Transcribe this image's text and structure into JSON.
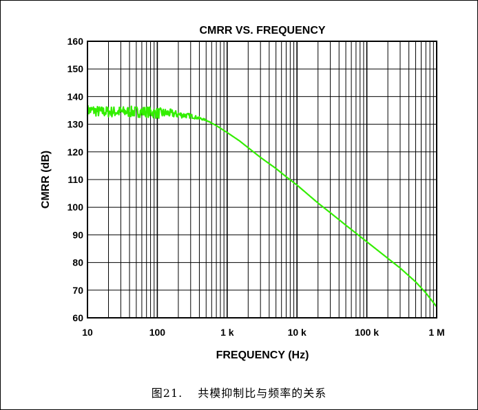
{
  "chart_data": {
    "type": "line",
    "title": "CMRR VS. FREQUENCY",
    "xlabel": "FREQUENCY (Hz)",
    "ylabel": "CMRR (dB)",
    "x_scale": "log",
    "xlim": [
      10,
      1000000
    ],
    "ylim": [
      60,
      160
    ],
    "x_ticks": [
      10,
      100,
      1000,
      10000,
      100000,
      1000000
    ],
    "x_tick_labels": [
      "10",
      "100",
      "1 k",
      "10 k",
      "100 k",
      "1 M"
    ],
    "y_ticks": [
      60,
      70,
      80,
      90,
      100,
      110,
      120,
      130,
      140,
      150,
      160
    ],
    "y_tick_labels": [
      "60",
      "70",
      "80",
      "90",
      "100",
      "110",
      "120",
      "130",
      "140",
      "150",
      "160"
    ],
    "grid": true,
    "series": [
      {
        "color": "#33ee00",
        "x": [
          10,
          12,
          15,
          20,
          30,
          50,
          70,
          100,
          150,
          200,
          300,
          500,
          700,
          1000,
          1500,
          2000,
          3000,
          5000,
          7000,
          10000,
          20000,
          30000,
          50000,
          100000,
          200000,
          300000,
          500000,
          700000,
          1000000
        ],
        "y": [
          135,
          135,
          134.5,
          134.5,
          134.5,
          134.5,
          134.5,
          134,
          134,
          133.5,
          133,
          131.5,
          129.5,
          127,
          124,
          121.5,
          118,
          114,
          111,
          108,
          101.5,
          98,
          93.5,
          87.5,
          81.5,
          78,
          73,
          69,
          64
        ]
      }
    ]
  },
  "caption": {
    "figure_label": "图21.",
    "text": "共模抑制比与频率的关系"
  }
}
